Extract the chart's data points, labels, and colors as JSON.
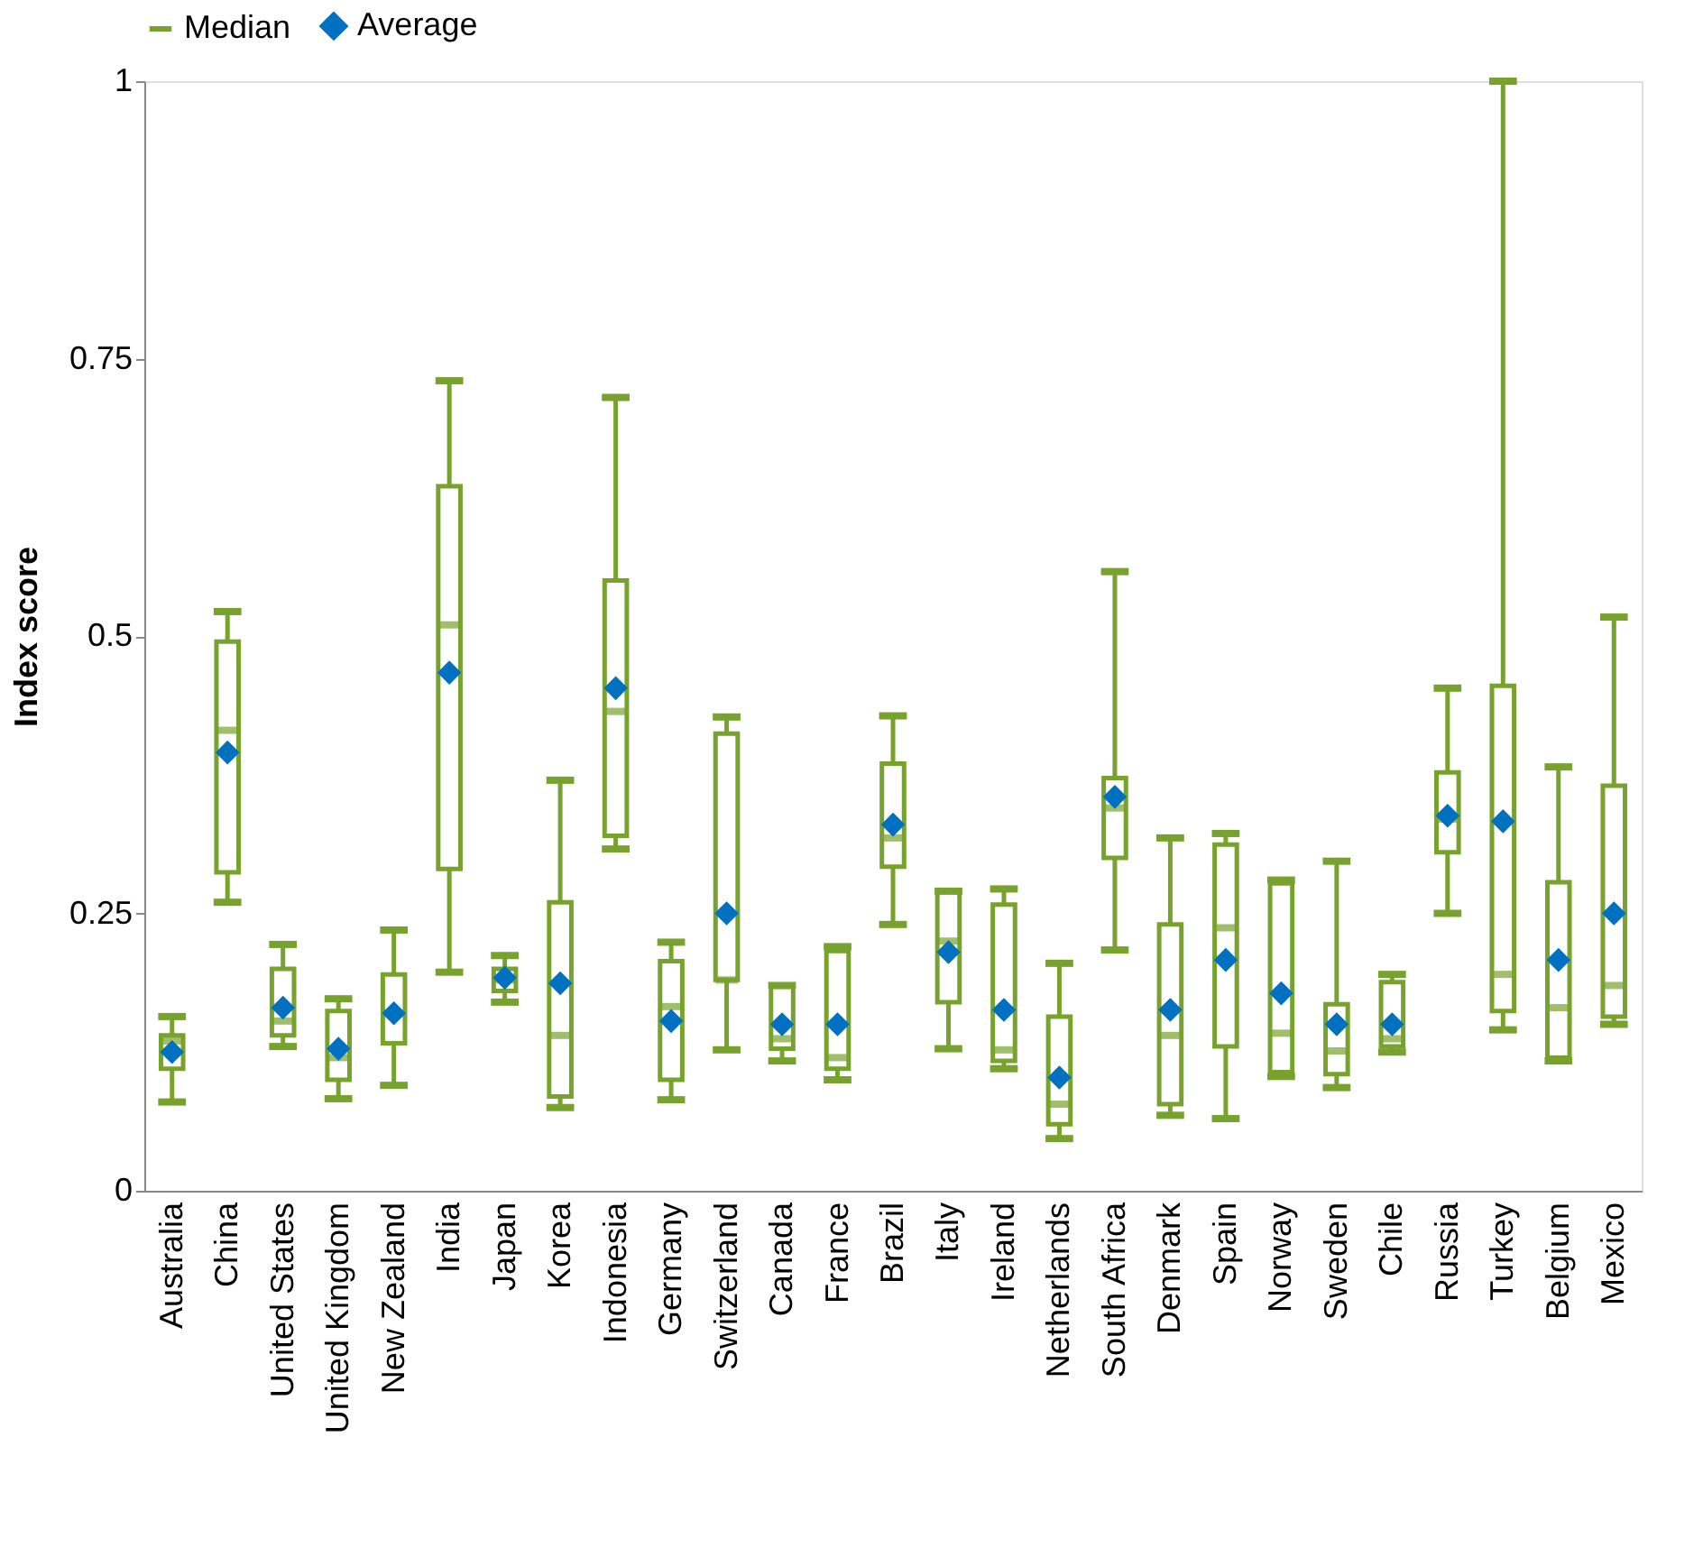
{
  "chart_data": {
    "type": "box",
    "ylabel": "Index score",
    "categories": [
      "Australia",
      "China",
      "United States",
      "United Kingdom",
      "New Zealand",
      "India",
      "Japan",
      "Korea",
      "Indonesia",
      "Germany",
      "Switzerland",
      "Canada",
      "France",
      "Brazil",
      "Italy",
      "Ireland",
      "Netherlands",
      "South Africa",
      "Denmark",
      "Spain",
      "Norway",
      "Sweden",
      "Chile",
      "Russia",
      "Turkey",
      "Belgium",
      "Mexico"
    ],
    "series": [
      {
        "name": "Median",
        "color": "#77a22d",
        "boxes": [
          {
            "low": 0.08,
            "q1": 0.11,
            "median": 0.135,
            "q3": 0.14,
            "high": 0.157
          },
          {
            "low": 0.26,
            "q1": 0.287,
            "median": 0.415,
            "q3": 0.495,
            "high": 0.522
          },
          {
            "low": 0.13,
            "q1": 0.14,
            "median": 0.153,
            "q3": 0.2,
            "high": 0.222
          },
          {
            "low": 0.083,
            "q1": 0.1,
            "median": 0.12,
            "q3": 0.162,
            "high": 0.173
          },
          {
            "low": 0.095,
            "q1": 0.133,
            "median": 0.16,
            "q3": 0.195,
            "high": 0.235
          },
          {
            "low": 0.197,
            "q1": 0.29,
            "median": 0.51,
            "q3": 0.635,
            "high": 0.73
          },
          {
            "low": 0.17,
            "q1": 0.18,
            "median": 0.19,
            "q3": 0.2,
            "high": 0.212
          },
          {
            "low": 0.075,
            "q1": 0.085,
            "median": 0.14,
            "q3": 0.26,
            "high": 0.37
          },
          {
            "low": 0.308,
            "q1": 0.32,
            "median": 0.432,
            "q3": 0.55,
            "high": 0.715
          },
          {
            "low": 0.082,
            "q1": 0.1,
            "median": 0.166,
            "q3": 0.207,
            "high": 0.224
          },
          {
            "low": 0.127,
            "q1": 0.19,
            "median": 0.19,
            "q3": 0.412,
            "high": 0.427
          },
          {
            "low": 0.117,
            "q1": 0.128,
            "median": 0.137,
            "q3": 0.184,
            "high": 0.185
          },
          {
            "low": 0.1,
            "q1": 0.11,
            "median": 0.12,
            "q3": 0.216,
            "high": 0.22
          },
          {
            "low": 0.24,
            "q1": 0.292,
            "median": 0.318,
            "q3": 0.385,
            "high": 0.428
          },
          {
            "low": 0.128,
            "q1": 0.17,
            "median": 0.225,
            "q3": 0.27,
            "high": 0.27
          },
          {
            "low": 0.11,
            "q1": 0.117,
            "median": 0.127,
            "q3": 0.258,
            "high": 0.272
          },
          {
            "low": 0.047,
            "q1": 0.06,
            "median": 0.078,
            "q3": 0.157,
            "high": 0.205
          },
          {
            "low": 0.217,
            "q1": 0.3,
            "median": 0.345,
            "q3": 0.372,
            "high": 0.558
          },
          {
            "low": 0.068,
            "q1": 0.078,
            "median": 0.14,
            "q3": 0.24,
            "high": 0.318
          },
          {
            "low": 0.065,
            "q1": 0.13,
            "median": 0.237,
            "q3": 0.312,
            "high": 0.322
          },
          {
            "low": 0.103,
            "q1": 0.107,
            "median": 0.142,
            "q3": 0.277,
            "high": 0.28
          },
          {
            "low": 0.093,
            "q1": 0.105,
            "median": 0.126,
            "q3": 0.168,
            "high": 0.297
          },
          {
            "low": 0.125,
            "q1": 0.13,
            "median": 0.137,
            "q3": 0.188,
            "high": 0.195
          },
          {
            "low": 0.25,
            "q1": 0.305,
            "median": 0.335,
            "q3": 0.377,
            "high": 0.453
          },
          {
            "low": 0.145,
            "q1": 0.162,
            "median": 0.195,
            "q3": 0.455,
            "high": 1.0
          },
          {
            "low": 0.117,
            "q1": 0.12,
            "median": 0.165,
            "q3": 0.278,
            "high": 0.382
          },
          {
            "low": 0.15,
            "q1": 0.157,
            "median": 0.185,
            "q3": 0.365,
            "high": 0.517
          }
        ]
      },
      {
        "name": "Average",
        "type": "scatter",
        "color": "#0070c0",
        "marker": "diamond",
        "values": [
          0.125,
          0.395,
          0.165,
          0.128,
          0.16,
          0.467,
          0.192,
          0.187,
          0.453,
          0.153,
          0.25,
          0.15,
          0.15,
          0.33,
          0.215,
          0.163,
          0.102,
          0.355,
          0.163,
          0.208,
          0.178,
          0.15,
          0.15,
          0.338,
          0.333,
          0.208,
          0.25
        ]
      }
    ],
    "ylim": [
      0,
      1
    ],
    "yticks": [
      0,
      0.25,
      0.5,
      0.75,
      1
    ],
    "grid": false,
    "legend": "top"
  }
}
